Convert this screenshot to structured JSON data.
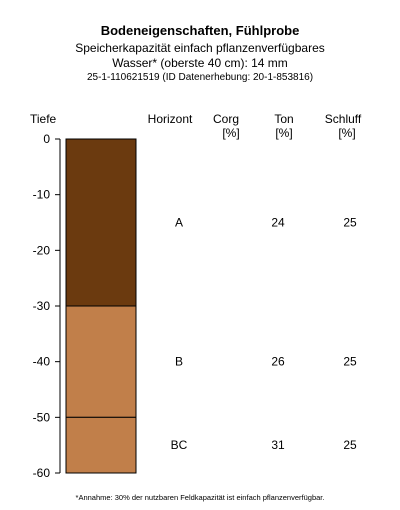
{
  "header": {
    "title": "Bodeneigenschaften, Fühlprobe",
    "subtitle_line1": "Speicherkapazität einfach pflanzenverfügbares",
    "subtitle_line2": "Wasser* (oberste 40 cm): 14 mm",
    "ids": "25-1-110621519 (ID Datenerhebung: 20-1-853816)"
  },
  "columns": {
    "depth": "Tiefe",
    "horizon": "Horizont",
    "corg": "Corg",
    "corg_unit": "[%]",
    "clay": "Ton",
    "clay_unit": "[%]",
    "silt": "Schluff",
    "silt_unit": "[%]"
  },
  "footnote": "*Annahme: 30% der nutzbaren Feldkapazität ist einfach pflanzenverfügbar.",
  "chart_data": {
    "type": "table",
    "title": "Bodeneigenschaften, Fühlprobe",
    "ylabel": "Tiefe",
    "ylim": [
      0,
      -60
    ],
    "y_ticks": [
      0,
      -10,
      -20,
      -30,
      -40,
      -50,
      -60
    ],
    "y_tick_labels": [
      "0",
      "-10",
      "-20",
      "-30",
      "-40",
      "-50",
      "-60"
    ],
    "horizons": [
      {
        "name": "A",
        "top": 0,
        "bottom": -30,
        "corg": "",
        "ton": "24",
        "schluff": "25",
        "color": "#6b3a0f"
      },
      {
        "name": "B",
        "top": -30,
        "bottom": -50,
        "corg": "",
        "ton": "26",
        "schluff": "25",
        "color": "#c17f4a"
      },
      {
        "name": "BC",
        "top": -50,
        "bottom": -60,
        "corg": "",
        "ton": "31",
        "schluff": "25",
        "color": "#c17f4a"
      }
    ]
  }
}
